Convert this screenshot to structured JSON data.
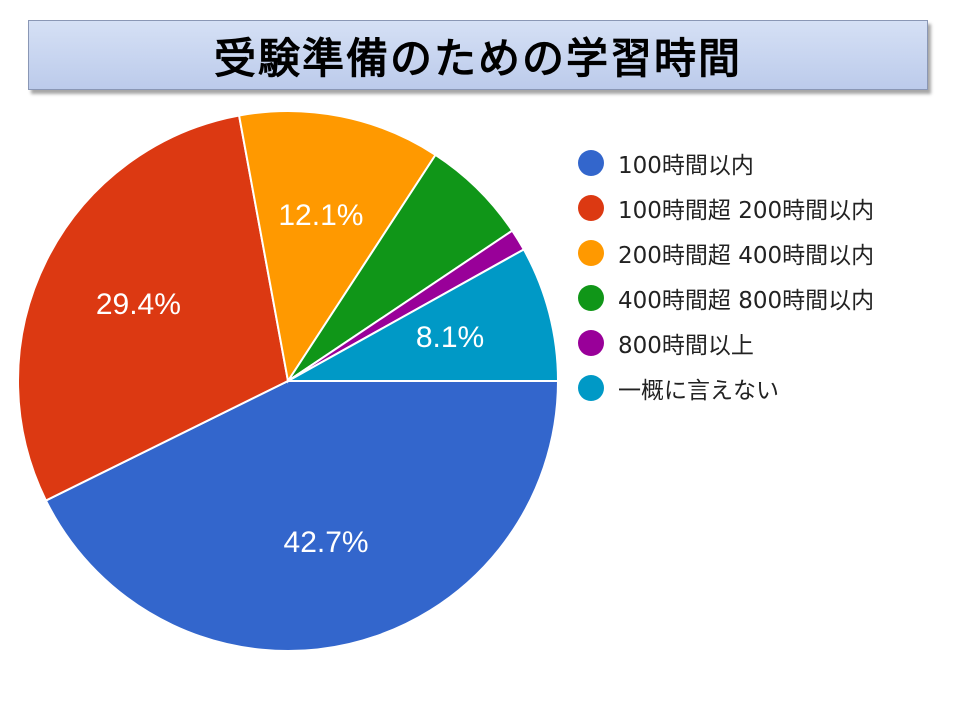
{
  "title": "受験準備のための学習時間",
  "chart_data": {
    "type": "pie",
    "slices": [
      {
        "label": "100時間以内",
        "value": 42.7,
        "value_label": "42.7%",
        "color": "#3366cc"
      },
      {
        "label": "100時間超 200時間以内",
        "value": 29.4,
        "value_label": "29.4%",
        "color": "#dc3912"
      },
      {
        "label": "200時間超 400時間以内",
        "value": 12.1,
        "value_label": "12.1%",
        "color": "#ff9900"
      },
      {
        "label": "400時間超 800時間以内",
        "value": 6.4,
        "value_label": "",
        "color": "#109618"
      },
      {
        "label": "800時間以上",
        "value": 1.3,
        "value_label": "",
        "color": "#990099"
      },
      {
        "label": "一概に言えない",
        "value": 8.1,
        "value_label": "8.1%",
        "color": "#0099c6"
      }
    ],
    "start_angle": "east",
    "direction": "clockwise",
    "legend_position": "right"
  }
}
